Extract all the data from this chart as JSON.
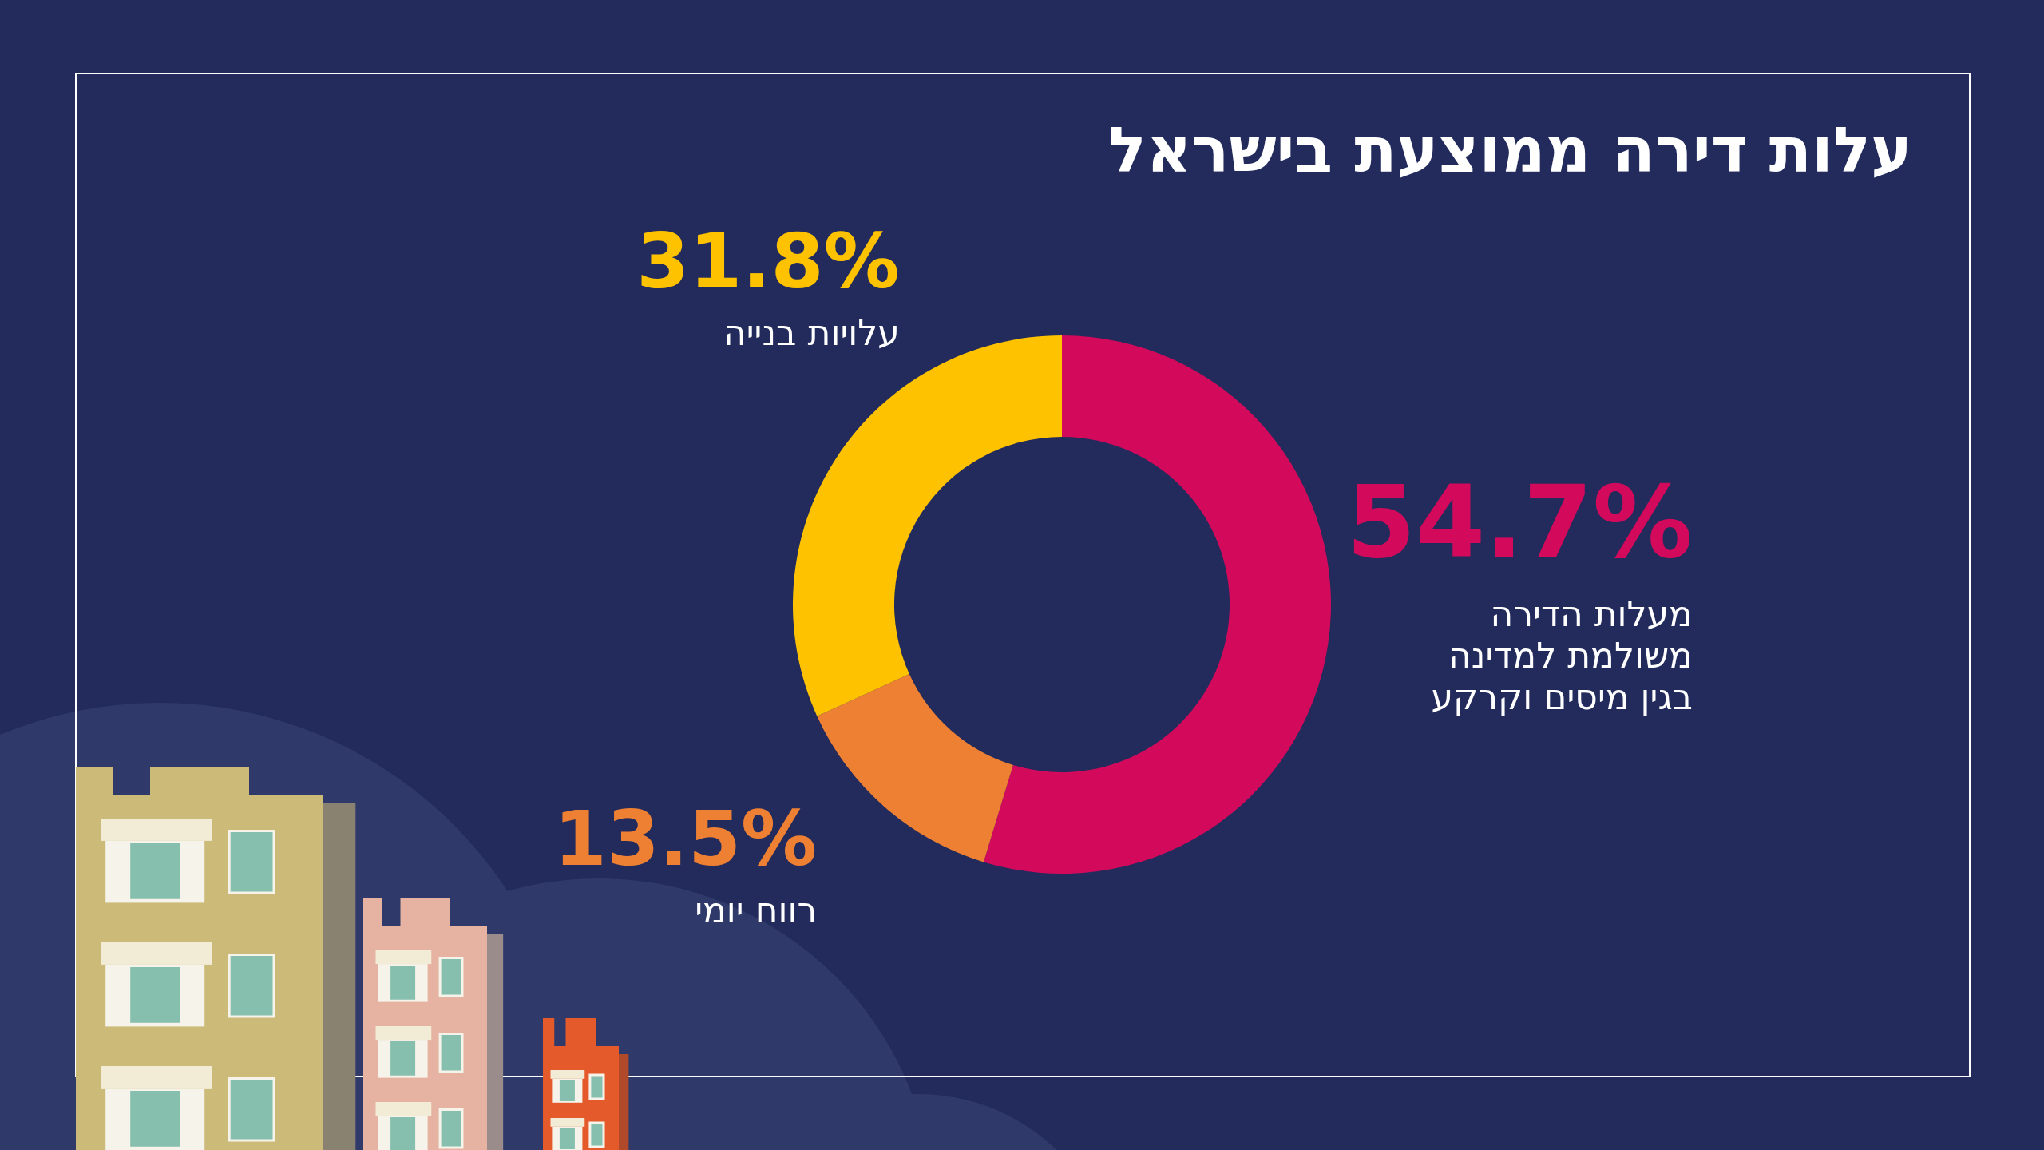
{
  "chart_data": {
    "type": "donut",
    "title": "עלות דירה ממוצעת בישראל",
    "categories": [
      "מעלות הדירה\nמשולמת למדינה\nבגין מיסים וקרקע",
      "רווח יומי",
      "עלויות בנייה"
    ],
    "values": [
      54.7,
      13.5,
      31.8
    ],
    "colors": [
      "#d30a5c",
      "#ee8033",
      "#fec200"
    ],
    "value_labels": [
      "54.7%",
      "13.5%",
      "31.8%"
    ]
  }
}
